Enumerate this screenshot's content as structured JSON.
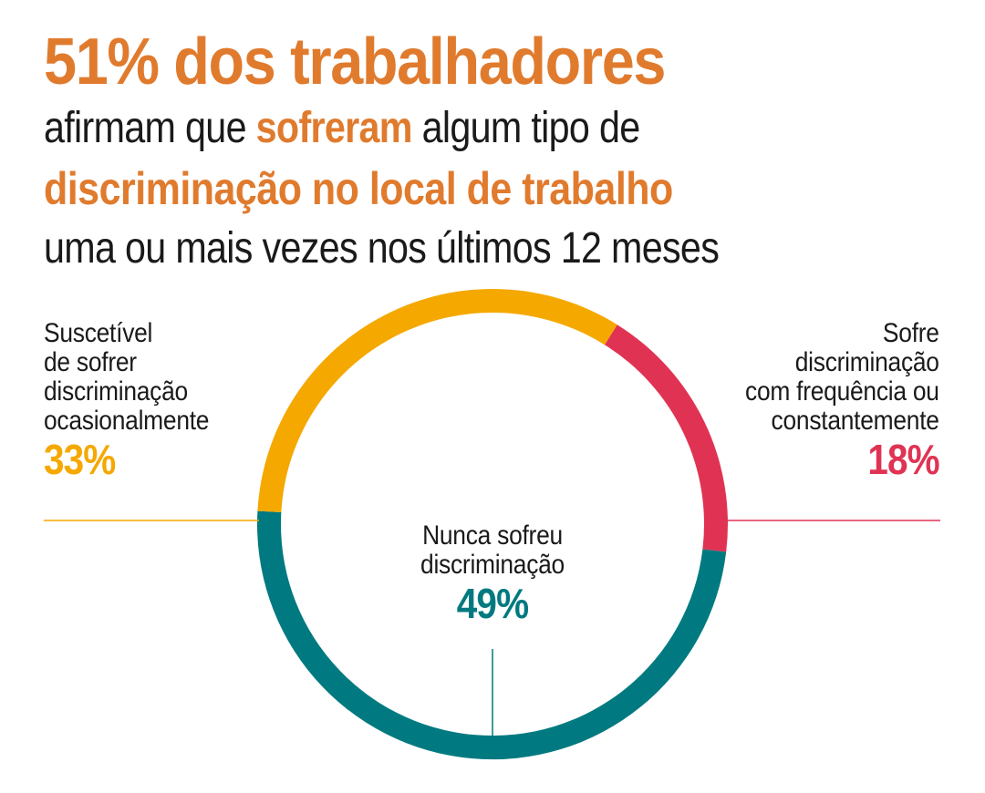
{
  "headline": {
    "line1": "51% dos trabalhadores",
    "line2_a": "afirmam que ",
    "line2_b": "sofreram",
    "line2_c": " algum tipo de",
    "line3": "discriminação no local de trabalho",
    "line4": "uma ou mais vezes nos últimos 12 meses"
  },
  "colors": {
    "accent": "#e07b2e",
    "occasional": "#f5a800",
    "frequent": "#e03353",
    "never": "#007a80"
  },
  "chart_data": {
    "type": "pie",
    "donut": true,
    "title": "51% dos trabalhadores afirmam que sofreram algum tipo de discriminação no local de trabalho uma ou mais vezes nos últimos 12 meses",
    "slices": [
      {
        "key": "frequent",
        "label": "Sofre discriminação com frequência ou constantemente",
        "label_lines": [
          "Sofre",
          "discriminação",
          "com frequência ou",
          "constantemente"
        ],
        "value": 18,
        "value_label": "18%",
        "color": "#e03353"
      },
      {
        "key": "never",
        "label": "Nunca sofreu discriminação",
        "label_lines": [
          "Nunca sofreu",
          "discriminação"
        ],
        "value": 49,
        "value_label": "49%",
        "color": "#007a80"
      },
      {
        "key": "occasional",
        "label": "Suscetível de sofrer discriminação ocasionalmente",
        "label_lines": [
          "Suscetível",
          "de sofrer",
          "discriminação",
          "ocasionalmente"
        ],
        "value": 33,
        "value_label": "33%",
        "color": "#f5a800"
      }
    ]
  }
}
